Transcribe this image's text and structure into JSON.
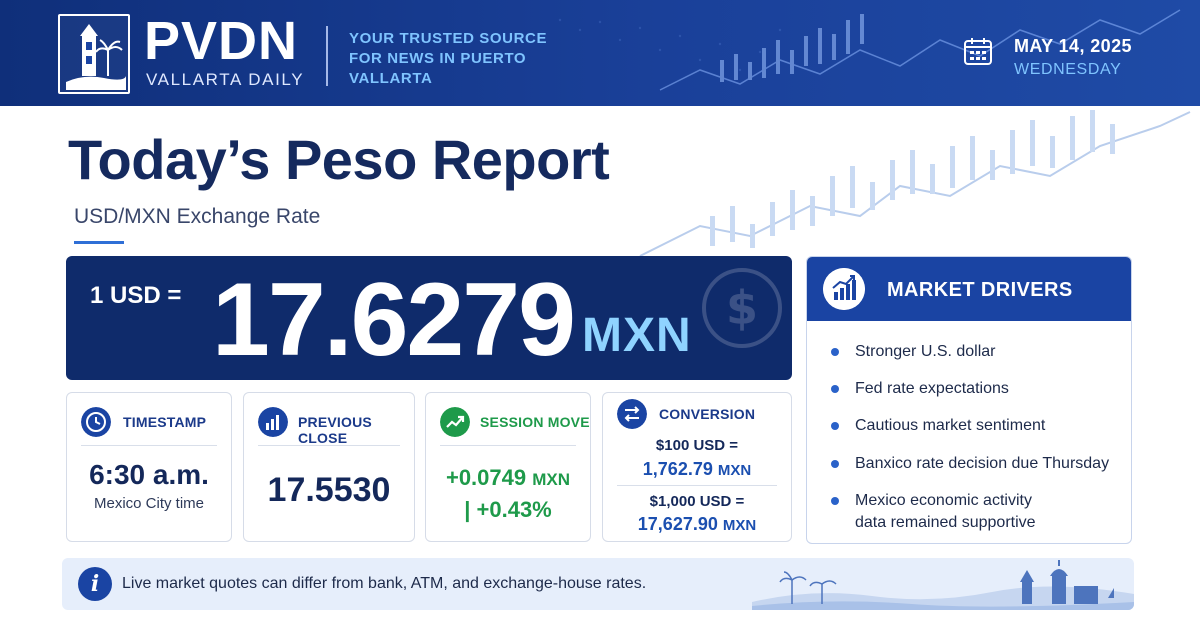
{
  "header": {
    "brand": "PVDN",
    "brand_sub": "VALLARTA DAILY",
    "tagline": "YOUR TRUSTED SOURCE FOR NEWS IN PUERTO VALLARTA",
    "date": "MAY 14, 2025",
    "weekday": "WEDNESDAY",
    "icons": [
      "lighthouse-logo",
      "calendar-icon"
    ]
  },
  "title": "Today’s Peso Report",
  "subtitle": "USD/MXN Exchange Rate",
  "rate": {
    "prefix": "1 USD =",
    "value": "17.6279",
    "unit": "MXN",
    "icon": "dollar-icon"
  },
  "cards": {
    "timestamp": {
      "label": "TIMESTAMP",
      "icon": "clock-icon",
      "value": "6:30 a.m.",
      "sub": "Mexico City time"
    },
    "previous_close": {
      "label": "PREVIOUS CLOSE",
      "icon": "bar-chart-icon",
      "value": "17.5530"
    },
    "session_move": {
      "label": "SESSION MOVE",
      "icon": "trend-up-icon",
      "line1_value": "+0.0749",
      "line1_unit": "MXN",
      "line2": "| +0.43%"
    },
    "conversion": {
      "label": "CONVERSION",
      "icon": "exchange-arrows-icon",
      "row1_from": "$100 USD =",
      "row1_value": "1,762.79",
      "row1_unit": "MXN",
      "row2_from": "$1,000 USD =",
      "row2_value": "17,627.90",
      "row2_unit": "MXN"
    }
  },
  "drivers": {
    "title": "MARKET DRIVERS",
    "icon": "growth-chart-icon",
    "items": [
      "Stronger U.S. dollar",
      "Fed rate expectations",
      "Cautious market sentiment",
      "Banxico rate decision due Thursday",
      "Mexico economic activity data remained supportive"
    ]
  },
  "info": {
    "icon": "info-icon",
    "text": "Live market quotes can differ from bank, ATM, and exchange-house rates."
  },
  "colors": {
    "header_bg": "#0f2f7a",
    "accent_blue": "#1a44a3",
    "light_blue": "#7fc4ff",
    "positive_green": "#1e9a4a",
    "navy_text": "#14285a"
  }
}
